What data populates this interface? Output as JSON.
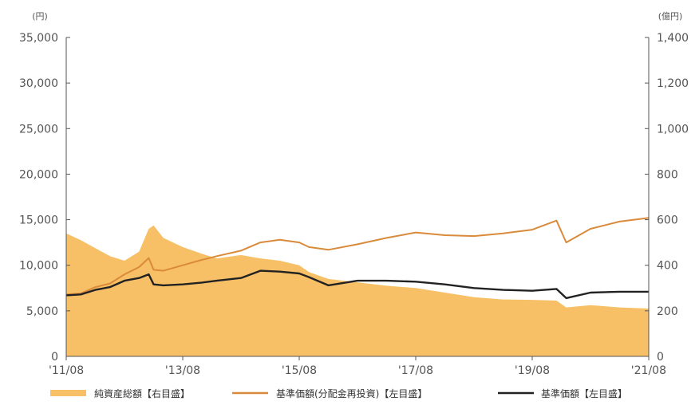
{
  "chart_data": {
    "type": "area+line",
    "left_axis": {
      "unit": "(円)",
      "ylim": [
        0,
        35000
      ],
      "ticks": [
        "0",
        "5,000",
        "10,000",
        "15,000",
        "20,000",
        "25,000",
        "30,000",
        "35,000"
      ]
    },
    "right_axis": {
      "unit": "(億円)",
      "ylim": [
        0,
        1400
      ],
      "ticks": [
        "0",
        "200",
        "400",
        "600",
        "800",
        "1,000",
        "1,200",
        "1,400"
      ]
    },
    "x_ticks": [
      "'11/08",
      "'13/08",
      "'15/08",
      "'17/08",
      "'19/08",
      "'21/08"
    ],
    "xlim": [
      "2011-08",
      "2021-08"
    ],
    "grid": false,
    "legend_position": "bottom",
    "series": [
      {
        "name": "純資産総額【右目盛】",
        "kind": "area",
        "axis": "right",
        "color": "#F7C067",
        "x": [
          "2011-08",
          "2011-11",
          "2012-02",
          "2012-05",
          "2012-08",
          "2012-11",
          "2013-01",
          "2013-02",
          "2013-04",
          "2013-08",
          "2013-12",
          "2014-03",
          "2014-08",
          "2014-12",
          "2015-04",
          "2015-08",
          "2015-10",
          "2016-02",
          "2016-08",
          "2017-02",
          "2017-08",
          "2018-02",
          "2018-08",
          "2019-02",
          "2019-08",
          "2020-01",
          "2020-03",
          "2020-08",
          "2021-02",
          "2021-08"
        ],
        "values": [
          540,
          510,
          475,
          440,
          420,
          460,
          560,
          575,
          520,
          480,
          450,
          430,
          445,
          430,
          420,
          400,
          370,
          340,
          325,
          310,
          300,
          280,
          260,
          250,
          248,
          245,
          215,
          225,
          215,
          210
        ]
      },
      {
        "name": "基準価額(分配金再投資)【左目盛】",
        "kind": "line",
        "axis": "left",
        "color": "#D98A3A",
        "x": [
          "2011-08",
          "2011-11",
          "2012-02",
          "2012-05",
          "2012-08",
          "2012-11",
          "2013-01",
          "2013-02",
          "2013-04",
          "2013-08",
          "2013-12",
          "2014-03",
          "2014-08",
          "2014-12",
          "2015-04",
          "2015-08",
          "2015-10",
          "2016-02",
          "2016-08",
          "2017-02",
          "2017-08",
          "2018-02",
          "2018-08",
          "2019-02",
          "2019-08",
          "2020-01",
          "2020-03",
          "2020-08",
          "2021-02",
          "2021-08"
        ],
        "values": [
          6800,
          6900,
          7600,
          8000,
          9000,
          9800,
          10800,
          9500,
          9400,
          10000,
          10600,
          11000,
          11600,
          12500,
          12800,
          12500,
          12000,
          11700,
          12300,
          13000,
          13600,
          13300,
          13200,
          13500,
          13900,
          14900,
          12500,
          14000,
          14800,
          15200
        ]
      },
      {
        "name": "基準価額【左目盛】",
        "kind": "line",
        "axis": "left",
        "color": "#222222",
        "x": [
          "2011-08",
          "2011-11",
          "2012-02",
          "2012-05",
          "2012-08",
          "2012-11",
          "2013-01",
          "2013-02",
          "2013-04",
          "2013-08",
          "2013-12",
          "2014-03",
          "2014-08",
          "2014-12",
          "2015-04",
          "2015-08",
          "2015-10",
          "2016-02",
          "2016-08",
          "2017-02",
          "2017-08",
          "2018-02",
          "2018-08",
          "2019-02",
          "2019-08",
          "2020-01",
          "2020-03",
          "2020-08",
          "2021-02",
          "2021-08"
        ],
        "values": [
          6700,
          6800,
          7300,
          7600,
          8300,
          8600,
          9000,
          7900,
          7800,
          7900,
          8100,
          8300,
          8600,
          9400,
          9300,
          9100,
          8700,
          7800,
          8300,
          8300,
          8200,
          7900,
          7500,
          7300,
          7200,
          7400,
          6400,
          7000,
          7100,
          7100
        ]
      }
    ]
  }
}
